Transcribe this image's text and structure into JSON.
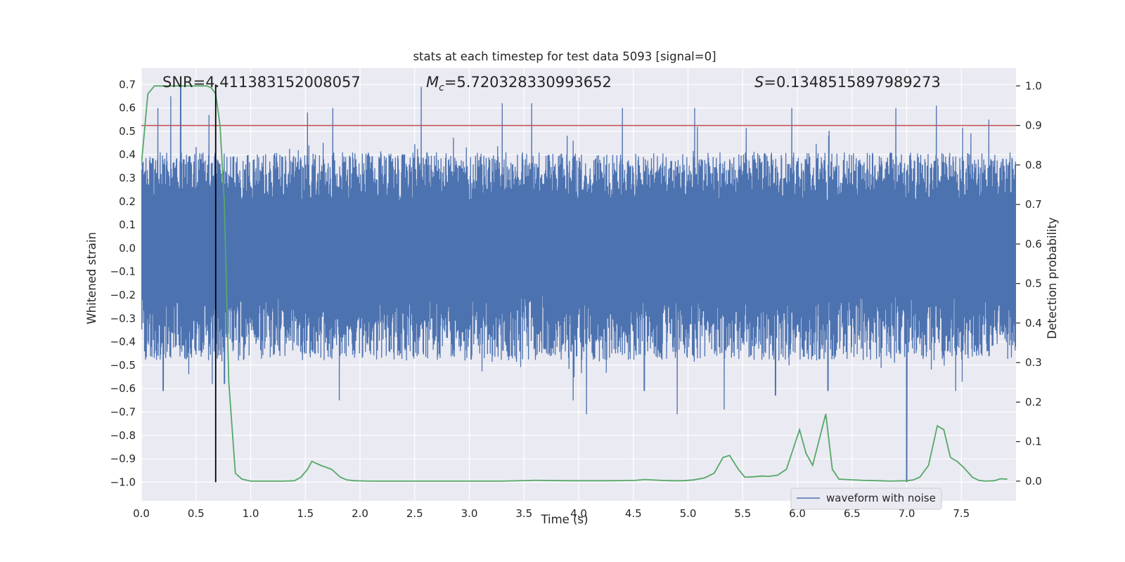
{
  "chart_data": {
    "type": "line",
    "title": "stats at each timestep for test data 5093 [signal=0]",
    "xlabel": "Time (s)",
    "ylabel": "Whitened strain",
    "y2label": "Detection probability",
    "xlim": [
      0.0,
      8.0
    ],
    "ylim": [
      -1.08,
      0.77
    ],
    "y2lim": [
      -0.05,
      1.045
    ],
    "xticks": [
      0.0,
      0.5,
      1.0,
      1.5,
      2.0,
      2.5,
      3.0,
      3.5,
      4.0,
      4.5,
      5.0,
      5.5,
      6.0,
      6.5,
      7.0,
      7.5
    ],
    "xtick_labels": [
      "0.0",
      "0.5",
      "1.0",
      "1.5",
      "2.0",
      "2.5",
      "3.0",
      "3.5",
      "4.0",
      "4.5",
      "5.0",
      "5.5",
      "6.0",
      "6.5",
      "7.0",
      "7.5"
    ],
    "yticks": [
      0.7,
      0.6,
      0.5,
      0.4,
      0.3,
      0.2,
      0.1,
      0.0,
      -0.1,
      -0.2,
      -0.3,
      -0.4,
      -0.5,
      -0.6,
      -0.7,
      -0.8,
      -0.9,
      -1.0
    ],
    "ytick_labels": [
      "0.7",
      "0.6",
      "0.5",
      "0.4",
      "0.3",
      "0.2",
      "0.1",
      "0.0",
      "−0.1",
      "−0.2",
      "−0.3",
      "−0.4",
      "−0.5",
      "−0.6",
      "−0.7",
      "−0.8",
      "−0.9",
      "−1.0"
    ],
    "y2ticks": [
      1.0,
      0.9,
      0.8,
      0.7,
      0.6,
      0.5,
      0.4,
      0.3,
      0.2,
      0.1,
      0.0
    ],
    "y2tick_labels": [
      "1.0",
      "0.9",
      "0.8",
      "0.7",
      "0.6",
      "0.5",
      "0.4",
      "0.3",
      "0.2",
      "0.1",
      "0.0"
    ],
    "grid": true,
    "legend": {
      "location": "lower-right",
      "entries": [
        {
          "label": "waveform with noise",
          "color": "#4c72b0"
        }
      ]
    },
    "annotations": {
      "snr": {
        "prefix": "SNR=",
        "value": "4.411383152008057"
      },
      "mc": {
        "symbol": "M",
        "subscript": "c",
        "value": "=5.720328330993652"
      },
      "s": {
        "symbol": "S",
        "value": "=0.1348515897989273"
      }
    },
    "threshold_line": {
      "axis": "y2",
      "value": 0.9,
      "color": "#c44e52"
    },
    "vertical_marker": {
      "x": 0.68,
      "y_from": -1.0,
      "y_to": 0.7,
      "color": "#000000"
    },
    "series": [
      {
        "name": "waveform with noise",
        "axis": "y",
        "color": "#4c72b0",
        "style": "dense-noise",
        "typical_max": 0.35,
        "typical_min": -0.4,
        "peaks": [
          {
            "x": 0.15,
            "y": 0.6
          },
          {
            "x": 0.27,
            "y": 0.65
          },
          {
            "x": 0.36,
            "y": 0.7
          },
          {
            "x": 0.62,
            "y": 0.57
          },
          {
            "x": 1.52,
            "y": 0.58
          },
          {
            "x": 1.75,
            "y": 0.6
          },
          {
            "x": 2.56,
            "y": 0.69
          },
          {
            "x": 3.3,
            "y": 0.62
          },
          {
            "x": 3.57,
            "y": 0.62
          },
          {
            "x": 4.4,
            "y": 0.6
          },
          {
            "x": 5.06,
            "y": 0.6
          },
          {
            "x": 5.95,
            "y": 0.6
          },
          {
            "x": 6.9,
            "y": 0.6
          },
          {
            "x": 7.27,
            "y": 0.61
          },
          {
            "x": 7.75,
            "y": 0.55
          }
        ],
        "troughs": [
          {
            "x": 0.2,
            "y": -0.61
          },
          {
            "x": 0.65,
            "y": -0.58
          },
          {
            "x": 0.76,
            "y": -0.58
          },
          {
            "x": 1.81,
            "y": -0.65
          },
          {
            "x": 3.95,
            "y": -0.65
          },
          {
            "x": 4.07,
            "y": -0.71
          },
          {
            "x": 4.6,
            "y": -0.61
          },
          {
            "x": 4.9,
            "y": -0.71
          },
          {
            "x": 5.33,
            "y": -0.69
          },
          {
            "x": 5.8,
            "y": -0.63
          },
          {
            "x": 6.28,
            "y": -0.61
          },
          {
            "x": 7.0,
            "y": -1.0
          },
          {
            "x": 7.45,
            "y": -0.61
          }
        ]
      },
      {
        "name": "",
        "axis": "y2",
        "color": "#55a868",
        "x": [
          0.0,
          0.06,
          0.12,
          0.2,
          0.3,
          0.4,
          0.5,
          0.6,
          0.64,
          0.68,
          0.72,
          0.76,
          0.8,
          0.86,
          0.92,
          1.0,
          1.1,
          1.2,
          1.3,
          1.4,
          1.46,
          1.52,
          1.56,
          1.64,
          1.74,
          1.82,
          1.88,
          1.95,
          2.1,
          2.5,
          3.0,
          3.3,
          3.6,
          3.9,
          4.3,
          4.52,
          4.6,
          4.75,
          4.86,
          4.95,
          5.05,
          5.15,
          5.24,
          5.32,
          5.38,
          5.46,
          5.52,
          5.6,
          5.68,
          5.74,
          5.82,
          5.9,
          5.96,
          6.02,
          6.08,
          6.14,
          6.26,
          6.32,
          6.38,
          6.45,
          6.6,
          6.75,
          6.85,
          7.0,
          7.06,
          7.12,
          7.2,
          7.28,
          7.34,
          7.4,
          7.46,
          7.52,
          7.6,
          7.66,
          7.72,
          7.8,
          7.86,
          7.92
        ],
        "y": [
          0.8,
          0.98,
          1.0,
          1.0,
          1.0,
          1.0,
          1.0,
          1.0,
          0.995,
          0.98,
          0.9,
          0.7,
          0.25,
          0.02,
          0.005,
          0.0,
          0.0,
          0.0,
          0.0,
          0.001,
          0.01,
          0.03,
          0.05,
          0.04,
          0.03,
          0.01,
          0.003,
          0.001,
          0.0,
          0.0,
          0.0,
          0.0,
          0.002,
          0.001,
          0.001,
          0.002,
          0.004,
          0.002,
          0.001,
          0.001,
          0.003,
          0.008,
          0.02,
          0.06,
          0.065,
          0.03,
          0.01,
          0.011,
          0.013,
          0.012,
          0.015,
          0.03,
          0.08,
          0.13,
          0.07,
          0.04,
          0.17,
          0.03,
          0.005,
          0.004,
          0.002,
          0.001,
          0.0,
          0.001,
          0.003,
          0.01,
          0.04,
          0.14,
          0.13,
          0.06,
          0.05,
          0.035,
          0.01,
          0.002,
          0.0,
          0.001,
          0.006,
          0.005
        ]
      }
    ]
  }
}
